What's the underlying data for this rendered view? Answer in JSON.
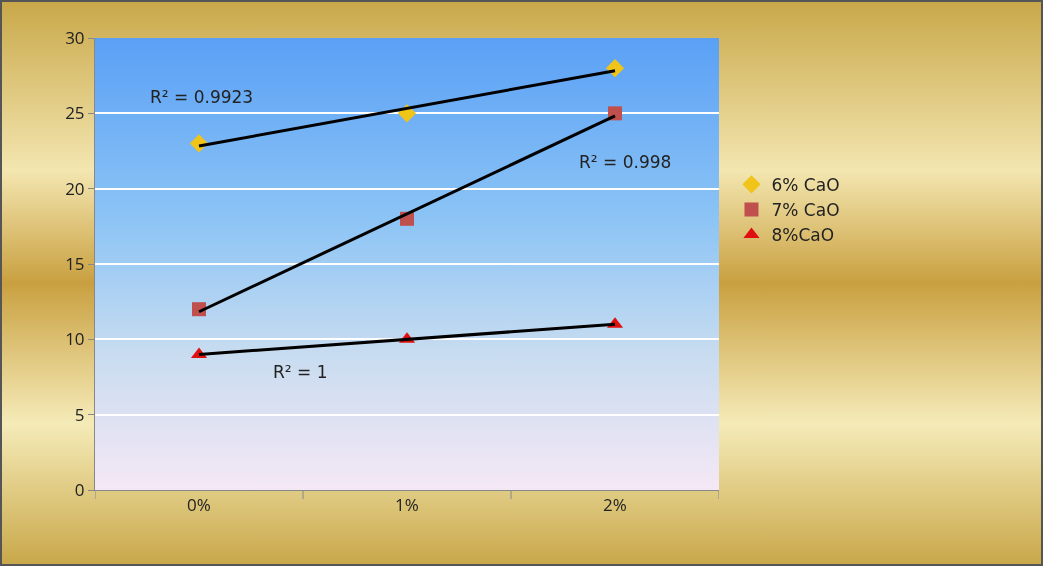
{
  "chart_data": {
    "type": "scatter",
    "categories": [
      "0%",
      "1%",
      "2%"
    ],
    "series": [
      {
        "name": "6% CaO",
        "color": "#f0c419",
        "marker": "diamond",
        "values": [
          23,
          25,
          28
        ]
      },
      {
        "name": "7% CaO",
        "color": "#c0504d",
        "marker": "square",
        "values": [
          12,
          18,
          25
        ]
      },
      {
        "name": "8%CaO",
        "color": "#e01010",
        "marker": "triangle",
        "values": [
          9,
          10,
          11
        ]
      },
      {
        "type": "line",
        "color": "#000000",
        "x": [
          "0%",
          "2%"
        ],
        "values": [
          22.83,
          27.83
        ]
      },
      {
        "type": "line",
        "color": "#000000",
        "x": [
          "0%",
          "2%"
        ],
        "values": [
          11.83,
          24.83
        ]
      },
      {
        "type": "line",
        "color": "#000000",
        "x": [
          "0%",
          "2%"
        ],
        "values": [
          9,
          11
        ]
      }
    ],
    "ylim": [
      0,
      30
    ],
    "yticks": [
      0,
      5,
      10,
      15,
      20,
      25,
      30
    ],
    "grid": "y",
    "legend": "right",
    "annotations": [
      "R² = 0.9923",
      "R² = 0.998",
      "R² = 1"
    ]
  }
}
